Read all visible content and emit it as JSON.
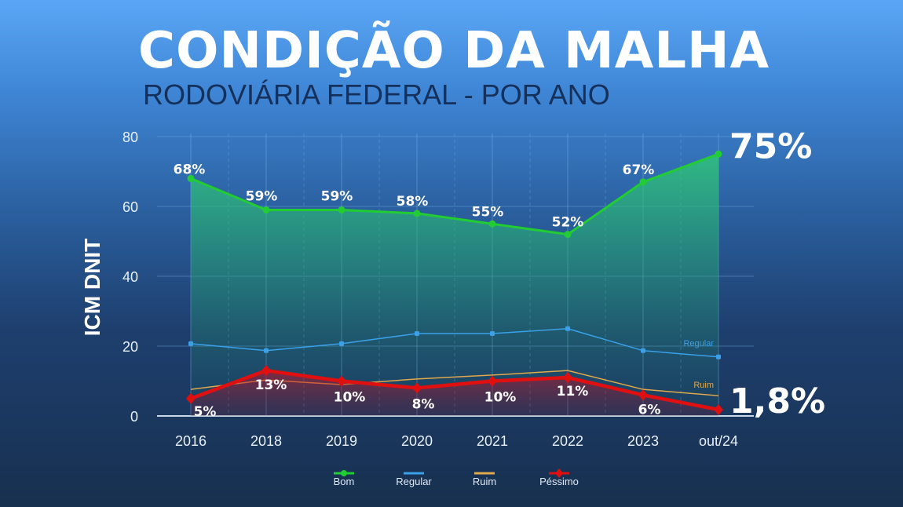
{
  "header": {
    "title": "CONDIÇÃO DA MALHA",
    "subtitle": "RODOVIÁRIA FEDERAL - POR ANO"
  },
  "chart_data": {
    "type": "line",
    "title": "CONDIÇÃO DA MALHA",
    "subtitle": "RODOVIÁRIA FEDERAL - POR ANO",
    "ylabel": "ICM DNIT",
    "xlabel": "",
    "ylim": [
      0,
      80
    ],
    "yticks": [
      0,
      20,
      40,
      60,
      80
    ],
    "grid": true,
    "legend": "bottom",
    "categories": [
      "2016",
      "2018",
      "2019",
      "2020",
      "2021",
      "2022",
      "2023",
      "out/24"
    ],
    "series": [
      {
        "name": "Bom",
        "color": "#22cc33",
        "values": [
          68,
          59,
          59,
          58,
          55,
          52,
          67,
          75
        ],
        "labels": [
          "68%",
          "59%",
          "59%",
          "58%",
          "55%",
          "52%",
          "67%",
          "75%"
        ],
        "area": true
      },
      {
        "name": "Regular",
        "color": "#3aa0e8",
        "values": [
          20.7,
          18.7,
          20.7,
          23.6,
          23.6,
          25,
          18.7,
          16.9
        ],
        "end_label": "Regular"
      },
      {
        "name": "Ruim",
        "color": "#e0a84a",
        "values": [
          7.6,
          10.3,
          9,
          10.6,
          11.7,
          13,
          7.6,
          5.8
        ],
        "end_label": "Ruim"
      },
      {
        "name": "Péssimo",
        "color": "#e01010",
        "values": [
          5,
          13,
          10,
          8,
          10,
          11,
          6,
          1.8
        ],
        "labels": [
          "5%",
          "13%",
          "10%",
          "8%",
          "10%",
          "11%",
          "6%",
          "1,8%"
        ],
        "area": true
      }
    ]
  }
}
